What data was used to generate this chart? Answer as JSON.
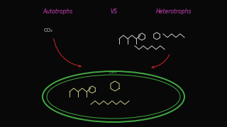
{
  "bg_color": "#080808",
  "autotrophs_text": "Autotrophs",
  "autotrophs_color": "#cc44bb",
  "vs_text": "VS",
  "vs_color": "#cc44bb",
  "heterotrophs_text": "Heterotrophs",
  "heterotrophs_color": "#cc44bb",
  "co2_text": "CO₂",
  "co2_color": "#cccccc",
  "cell_text": "Cell",
  "cell_color": "#44aa44",
  "arrow_color": "#bb2222",
  "molecule_color_outside": "#cccccc",
  "molecule_color_inside": "#cccc88",
  "cell_ellipse_color": "#44aa44",
  "figsize": [
    3.2,
    1.8
  ],
  "dpi": 100
}
